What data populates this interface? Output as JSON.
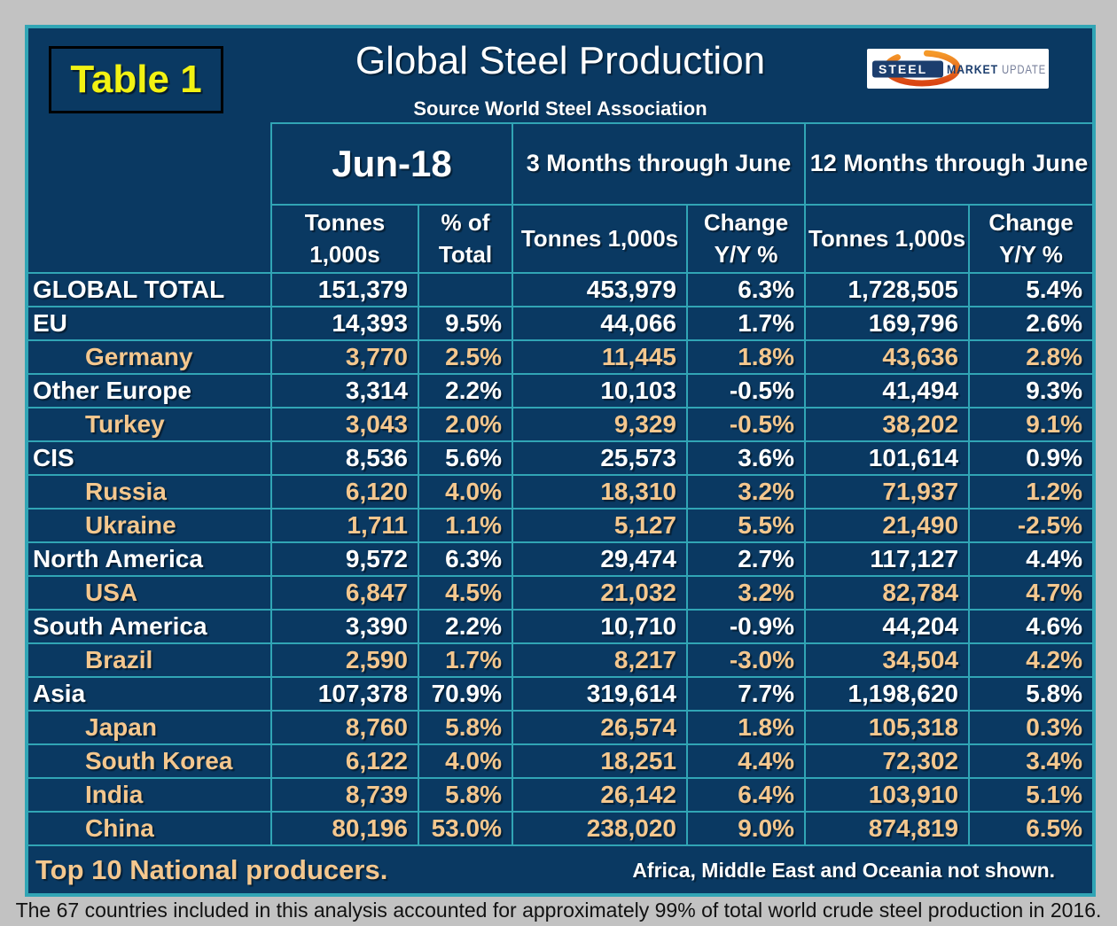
{
  "page": {
    "caption": "The 67 countries included in this analysis accounted for approximately 99% of total world crude steel production in 2016."
  },
  "colors": {
    "navy": "#0a3962",
    "teal": "#31a5b5",
    "tan": "#f4c78e",
    "yellow": "#f2f213",
    "logo_orange": "#e8641e",
    "logo_navy": "#1c3e6e",
    "logo_update_blue": "#78809b"
  },
  "header": {
    "badge": "Table 1",
    "logo": {
      "steel": "STEEL",
      "market": "MARKET",
      "update": "UPDATE"
    }
  },
  "footer": {
    "left": "Top 10 National producers.",
    "right": "Africa, Middle East and Oceania not shown."
  },
  "chart_data": {
    "type": "table",
    "title": "Global Steel Production",
    "subtitle": "Source World Steel Association",
    "group_headers": [
      "Jun-18",
      "3 Months through June",
      "12 Months through June"
    ],
    "sub_headers": [
      "Tonnes 1,000s",
      "% of Total",
      "Tonnes 1,000s",
      "Change Y/Y %",
      "Tonnes 1,000s",
      "Change Y/Y %"
    ],
    "rows": [
      {
        "label": "GLOBAL TOTAL",
        "type": "region",
        "values": [
          "151,379",
          "",
          "453,979",
          "6.3%",
          "1,728,505",
          "5.4%"
        ]
      },
      {
        "label": "EU",
        "type": "region",
        "values": [
          "14,393",
          "9.5%",
          "44,066",
          "1.7%",
          "169,796",
          "2.6%"
        ]
      },
      {
        "label": "Germany",
        "type": "country",
        "values": [
          "3,770",
          "2.5%",
          "11,445",
          "1.8%",
          "43,636",
          "2.8%"
        ]
      },
      {
        "label": "Other Europe",
        "type": "region",
        "values": [
          "3,314",
          "2.2%",
          "10,103",
          "-0.5%",
          "41,494",
          "9.3%"
        ]
      },
      {
        "label": "Turkey",
        "type": "country",
        "values": [
          "3,043",
          "2.0%",
          "9,329",
          "-0.5%",
          "38,202",
          "9.1%"
        ]
      },
      {
        "label": "CIS",
        "type": "region",
        "values": [
          "8,536",
          "5.6%",
          "25,573",
          "3.6%",
          "101,614",
          "0.9%"
        ]
      },
      {
        "label": "Russia",
        "type": "country",
        "values": [
          "6,120",
          "4.0%",
          "18,310",
          "3.2%",
          "71,937",
          "1.2%"
        ]
      },
      {
        "label": "Ukraine",
        "type": "country",
        "values": [
          "1,711",
          "1.1%",
          "5,127",
          "5.5%",
          "21,490",
          "-2.5%"
        ]
      },
      {
        "label": "North America",
        "type": "region",
        "values": [
          "9,572",
          "6.3%",
          "29,474",
          "2.7%",
          "117,127",
          "4.4%"
        ]
      },
      {
        "label": "USA",
        "type": "country",
        "values": [
          "6,847",
          "4.5%",
          "21,032",
          "3.2%",
          "82,784",
          "4.7%"
        ]
      },
      {
        "label": "South America",
        "type": "region",
        "values": [
          "3,390",
          "2.2%",
          "10,710",
          "-0.9%",
          "44,204",
          "4.6%"
        ]
      },
      {
        "label": "Brazil",
        "type": "country",
        "values": [
          "2,590",
          "1.7%",
          "8,217",
          "-3.0%",
          "34,504",
          "4.2%"
        ]
      },
      {
        "label": "Asia",
        "type": "region",
        "values": [
          "107,378",
          "70.9%",
          "319,614",
          "7.7%",
          "1,198,620",
          "5.8%"
        ]
      },
      {
        "label": "Japan",
        "type": "country",
        "values": [
          "8,760",
          "5.8%",
          "26,574",
          "1.8%",
          "105,318",
          "0.3%"
        ]
      },
      {
        "label": "South Korea",
        "type": "country",
        "values": [
          "6,122",
          "4.0%",
          "18,251",
          "4.4%",
          "72,302",
          "3.4%"
        ]
      },
      {
        "label": "India",
        "type": "country",
        "values": [
          "8,739",
          "5.8%",
          "26,142",
          "6.4%",
          "103,910",
          "5.1%"
        ]
      },
      {
        "label": "China",
        "type": "country",
        "values": [
          "80,196",
          "53.0%",
          "238,020",
          "9.0%",
          "874,819",
          "6.5%"
        ]
      }
    ]
  }
}
